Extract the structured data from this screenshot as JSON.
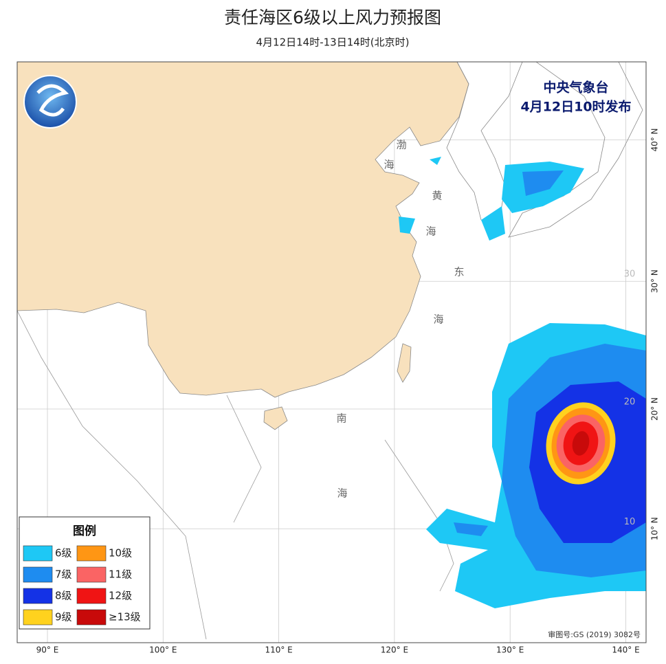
{
  "header": {
    "title": "责任海区6级以上风力预报图",
    "subtitle": "4月12日14时-13日14时(北京时)"
  },
  "issuer": {
    "name": "中央气象台",
    "time": "4月12日10时发布"
  },
  "grid": {
    "lon": [
      {
        "value": 90,
        "label": "90° E"
      },
      {
        "value": 100,
        "label": "100° E"
      },
      {
        "value": 110,
        "label": "110° E"
      },
      {
        "value": 120,
        "label": "120° E"
      },
      {
        "value": 130,
        "label": "130° E"
      },
      {
        "value": 140,
        "label": "140° E"
      }
    ],
    "lat": [
      {
        "value": 40,
        "label": "40° N"
      },
      {
        "value": 30,
        "label": "30° N"
      },
      {
        "value": 20,
        "label": "20° N"
      },
      {
        "value": 10,
        "label": "10° N"
      }
    ],
    "inner_lat_labels": [
      30,
      20,
      10
    ]
  },
  "sea_labels": [
    "渤",
    "海",
    "黄",
    "海",
    "东",
    "海",
    "南",
    "海"
  ],
  "legend": {
    "title": "图例",
    "items": [
      {
        "label": "6级",
        "color": "#1ec8f5"
      },
      {
        "label": "7级",
        "color": "#1e8cf0"
      },
      {
        "label": "8级",
        "color": "#1432e6"
      },
      {
        "label": "9级",
        "color": "#ffd21e"
      },
      {
        "label": "10级",
        "color": "#ff9614"
      },
      {
        "label": "11级",
        "color": "#fa6464"
      },
      {
        "label": "12级",
        "color": "#f01414"
      },
      {
        "label": "≥13级",
        "color": "#c80a0a"
      }
    ]
  },
  "approval": "审图号:GS (2019) 3082号"
}
